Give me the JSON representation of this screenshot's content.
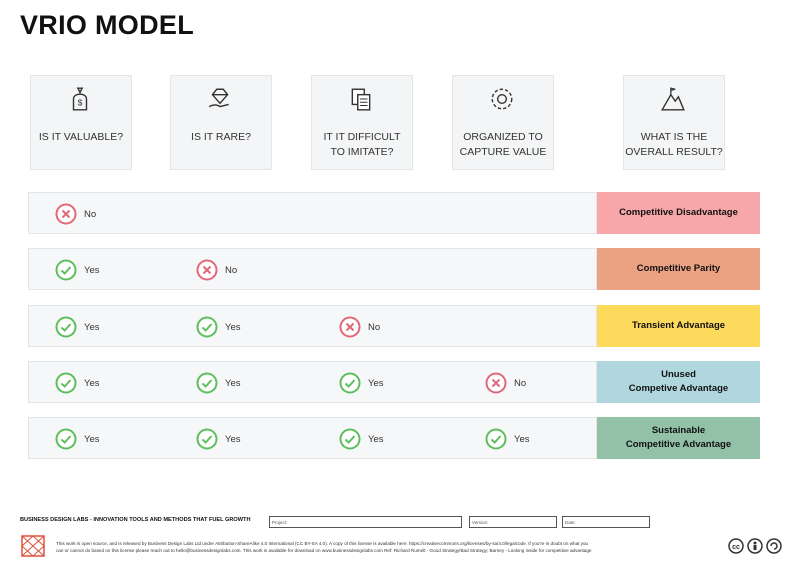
{
  "header": {
    "title": "VRIO MODEL"
  },
  "questions": [
    {
      "lines": [
        "IS IT VALUABLE?"
      ]
    },
    {
      "lines": [
        "IS IT RARE?"
      ]
    },
    {
      "lines": [
        "IT IT DIFFICULT",
        "TO IMITATE?"
      ]
    },
    {
      "lines": [
        "ORGANIZED TO",
        "CAPTURE VALUE"
      ]
    },
    {
      "lines": [
        "WHAT IS THE",
        "OVERALL RESULT?"
      ]
    }
  ],
  "rows": [
    {
      "cells": [
        {
          "text": "No",
          "icon": "cross"
        }
      ],
      "result": [
        "Competitive Disadvantage"
      ],
      "color": "#f7a7aa"
    },
    {
      "cells": [
        {
          "text": "Yes",
          "icon": "check"
        },
        {
          "text": "No",
          "icon": "cross"
        }
      ],
      "result": [
        "Competitive Parity"
      ],
      "color": "#eaa283"
    },
    {
      "cells": [
        {
          "text": "Yes",
          "icon": "check"
        },
        {
          "text": "Yes",
          "icon": "check"
        },
        {
          "text": "No",
          "icon": "cross"
        }
      ],
      "result": [
        "Transient Advantage"
      ],
      "color": "#fdd95c"
    },
    {
      "cells": [
        {
          "text": "Yes",
          "icon": "check"
        },
        {
          "text": "Yes",
          "icon": "check"
        },
        {
          "text": "Yes",
          "icon": "check"
        },
        {
          "text": "No",
          "icon": "cross"
        }
      ],
      "result": [
        "Unused",
        "Competive Advantage"
      ],
      "color": "#b0d7dd"
    },
    {
      "cells": [
        {
          "text": "Yes",
          "icon": "check"
        },
        {
          "text": "Yes",
          "icon": "check"
        },
        {
          "text": "Yes",
          "icon": "check"
        },
        {
          "text": "Yes",
          "icon": "check"
        }
      ],
      "result": [
        "Sustainable",
        "Competitive Advantage"
      ],
      "color": "#92c1a8"
    }
  ],
  "footer": {
    "brand": "BUSINESS DESIGN LABS - INNOVATION TOOLS AND METHODS THAT FUEL GROWTH",
    "fields": [
      "Project:",
      "Version:",
      "Date:"
    ],
    "license": [
      "This work is open source, and is released by Business Design Labs Ltd under Attribution-ShareAlike 4.0 International (CC BY-SA 4.0). A copy of this license is available here: https://creativecommons.org/licenses/by-sa/4.0/legalcode. If you're in doubt on what you",
      "can or cannot do based on this license please reach out to hello@businessdesignlabs.com. This work is available for download on www.businessdesignlabs.com Ref: Richard Rumelt - Good Strategy/Bad Strategy; Barney - Looking inside for competitive advantage"
    ]
  }
}
